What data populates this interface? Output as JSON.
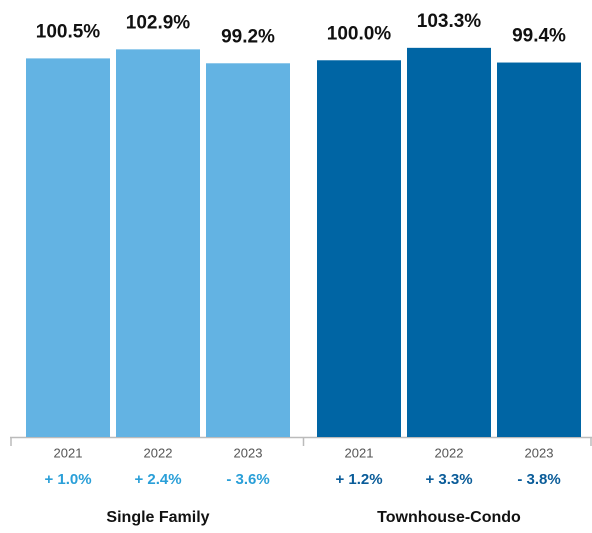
{
  "chart_data": {
    "type": "bar",
    "ylim": [
      0,
      116
    ],
    "series": [
      {
        "name": "Single Family",
        "color": "#63b3e3",
        "change_color": "#2a9fd8",
        "categories": [
          "2021",
          "2022",
          "2023"
        ],
        "values": [
          100.5,
          102.9,
          99.2
        ],
        "value_labels": [
          "100.5%",
          "102.9%",
          "99.2%"
        ],
        "change_labels": [
          "+ 1.0%",
          "+ 2.4%",
          "- 3.6%"
        ]
      },
      {
        "name": "Townhouse-Condo",
        "color": "#0065a4",
        "change_color": "#0a5c99",
        "categories": [
          "2021",
          "2022",
          "2023"
        ],
        "values": [
          100.0,
          103.3,
          99.4
        ],
        "value_labels": [
          "100.0%",
          "103.3%",
          "99.4%"
        ],
        "change_labels": [
          "+ 1.2%",
          "+ 3.3%",
          "- 3.8%"
        ]
      }
    ]
  }
}
